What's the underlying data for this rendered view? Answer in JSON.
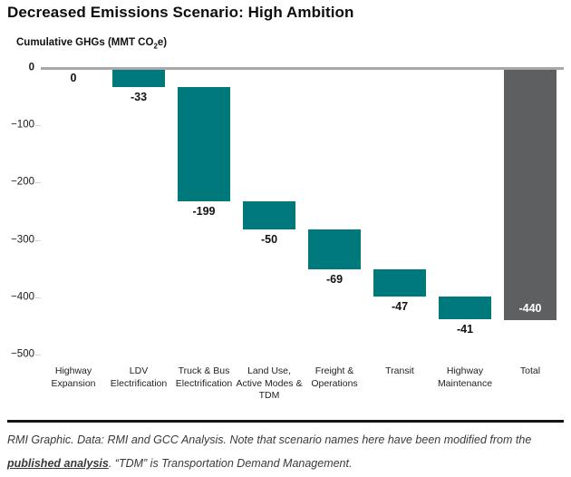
{
  "title": "Decreased Emissions Scenario: High Ambition",
  "axis_title": {
    "prefix": "Cumulative GHGs (MMT CO",
    "sub": "2",
    "suffix": "e)"
  },
  "chart_data": {
    "type": "bar",
    "subtype": "waterfall",
    "title": "Decreased Emissions Scenario: High Ambition",
    "ylabel": "Cumulative GHGs (MMT CO2e)",
    "categories": [
      "Highway Expansion",
      "LDV Electrification",
      "Truck & Bus Electrification",
      "Land Use, Active Modes & TDM",
      "Freight & Operations",
      "Transit",
      "Highway Maintenance",
      "Total"
    ],
    "values": [
      0,
      -33,
      -199,
      -50,
      -69,
      -47,
      -41
    ],
    "total": -440,
    "bar_labels": [
      "0",
      "-33",
      "-199",
      "-50",
      "-69",
      "-47",
      "-41",
      "-440"
    ],
    "cumulative": [
      0,
      -33,
      -232,
      -282,
      -351,
      -398,
      -439
    ],
    "ytick_labels": [
      "0",
      "−100",
      "−200",
      "−300",
      "−400",
      "−500"
    ],
    "ylim": [
      0,
      -500
    ],
    "grid": false,
    "legend": "none",
    "colors": {
      "step_bar": "#00797d",
      "total_bar": "#5e5f61",
      "zero_line": "#a8a8a8",
      "value_label": "#111111",
      "total_value_label": "#ffffff"
    }
  },
  "footer": {
    "text_before_link": "RMI Graphic. Data: RMI and GCC Analysis. Note that scenario names here have been modified from the ",
    "link_text": "published analysis",
    "text_after_link": ". “TDM” is Transportation Demand Management."
  }
}
